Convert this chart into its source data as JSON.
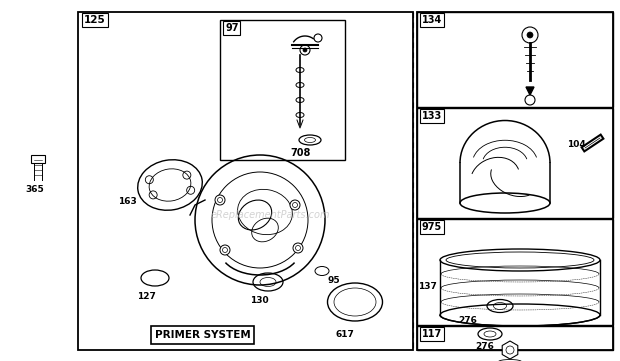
{
  "bg_color": "#ffffff",
  "watermark": "eReplacementParts.com",
  "fig_w": 6.2,
  "fig_h": 3.61,
  "dpi": 100
}
